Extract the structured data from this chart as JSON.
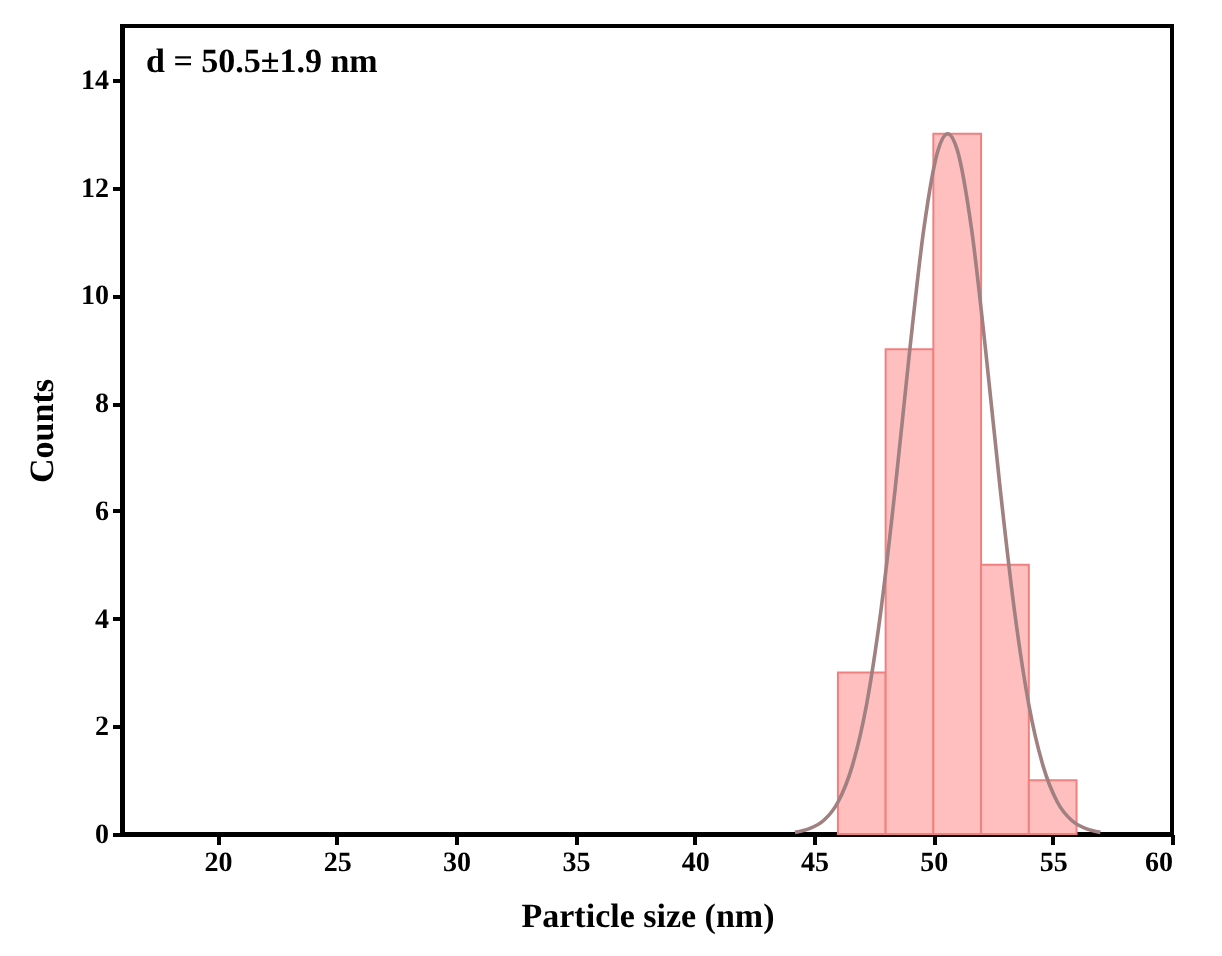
{
  "chart_data": {
    "type": "histogram",
    "xlabel": "Particle size (nm)",
    "ylabel": "Counts",
    "annotations": [
      "d = 50.5±1.9 nm"
    ],
    "xlim": [
      16,
      60
    ],
    "xticks": [
      20,
      25,
      30,
      35,
      40,
      45,
      50,
      55,
      60
    ],
    "ylim": [
      0,
      15
    ],
    "yticks": [
      0,
      2,
      4,
      6,
      8,
      10,
      12,
      14
    ],
    "grid": false,
    "series": [
      {
        "color": "#ffbfbf",
        "bins": [
          46,
          48,
          50,
          52,
          54,
          56
        ],
        "values": [
          3,
          9,
          13,
          5,
          1
        ]
      },
      {
        "type": "line",
        "color": "#a08080",
        "x": [
          44.2,
          44.8,
          45.4,
          46.0,
          46.6,
          47.2,
          47.8,
          48.4,
          49.0,
          49.6,
          50.2,
          50.6,
          51.0,
          51.6,
          52.2,
          52.8,
          53.4,
          54.0,
          54.6,
          55.2,
          55.8,
          56.4,
          57.0
        ],
        "values": [
          0.03,
          0.1,
          0.25,
          0.59,
          1.26,
          2.4,
          4.14,
          6.41,
          8.94,
          11.23,
          12.7,
          13,
          12.7,
          11.23,
          8.94,
          6.41,
          4.14,
          2.4,
          1.26,
          0.59,
          0.25,
          0.1,
          0.03
        ]
      }
    ]
  }
}
